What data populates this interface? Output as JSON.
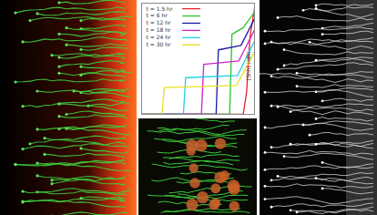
{
  "chart_data": {
    "type": "line",
    "y_label": "[Shh] (nM)",
    "xlim": [
      0,
      1
    ],
    "ylim": [
      0,
      1
    ],
    "tick_labels": false,
    "legend": "top-left",
    "series": [
      {
        "name": "t = 1.5 hr",
        "color": "#e8212a",
        "x": [
          0,
          0.9,
          0.93,
          0.96,
          1.0
        ],
        "values": [
          0,
          0,
          0.2,
          0.7,
          0.95
        ]
      },
      {
        "name": "t = 6 hr",
        "color": "#29c329",
        "x": [
          0,
          0.78,
          0.8,
          0.9,
          1.0
        ],
        "values": [
          0,
          0,
          0.72,
          0.78,
          0.92
        ]
      },
      {
        "name": "t = 12 hr",
        "color": "#1a1aa8",
        "x": [
          0,
          0.66,
          0.68,
          0.88,
          1.0
        ],
        "values": [
          0,
          0,
          0.58,
          0.62,
          0.86
        ]
      },
      {
        "name": "t = 18 hr",
        "color": "#d020d0",
        "x": [
          0,
          0.53,
          0.55,
          0.86,
          1.0
        ],
        "values": [
          0,
          0,
          0.45,
          0.48,
          0.76
        ]
      },
      {
        "name": "t = 24 hr",
        "color": "#20d0e0",
        "x": [
          0,
          0.37,
          0.39,
          0.85,
          1.0
        ],
        "values": [
          0,
          0,
          0.33,
          0.35,
          0.66
        ]
      },
      {
        "name": "t = 30 hr",
        "color": "#e8e020",
        "x": [
          0,
          0.18,
          0.2,
          0.84,
          1.0
        ],
        "values": [
          0,
          0,
          0.24,
          0.26,
          0.56
        ]
      }
    ]
  }
}
